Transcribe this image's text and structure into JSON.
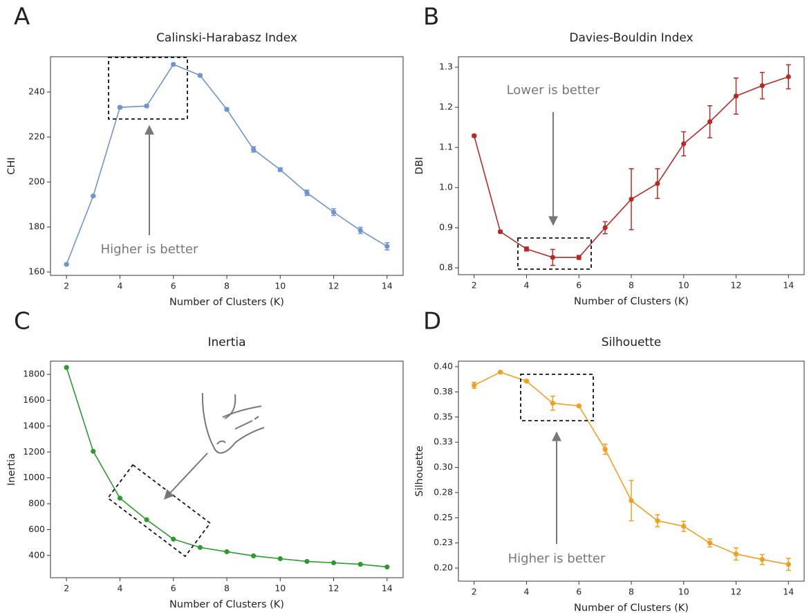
{
  "chart_data": [
    {
      "type": "line",
      "panel_label": "A",
      "title": "Calinski-Harabasz Index",
      "xlabel": "Number of Clusters (K)",
      "ylabel": "CHI",
      "annotation": "Higher is better",
      "color": "#6f94cf",
      "x": [
        2,
        3,
        4,
        5,
        6,
        7,
        8,
        9,
        10,
        11,
        12,
        13,
        14
      ],
      "values": [
        163.4,
        193.8,
        233.2,
        233.8,
        252.3,
        247.4,
        232.3,
        214.5,
        205.5,
        195.2,
        186.6,
        178.5,
        171.4
      ],
      "errors": [
        0.3,
        0.5,
        0.5,
        0.5,
        0.5,
        0.5,
        0.6,
        1.2,
        0.8,
        1.2,
        1.5,
        1.4,
        1.6
      ],
      "xlim": [
        1.4,
        14.6
      ],
      "xticks": [
        2,
        4,
        6,
        8,
        10,
        12,
        14
      ],
      "ylim": [
        158.5,
        255.7
      ],
      "yticks": [
        160,
        180,
        200,
        220,
        240
      ]
    },
    {
      "type": "line",
      "panel_label": "B",
      "title": "Davies-Bouldin Index",
      "xlabel": "Number of Clusters (K)",
      "ylabel": "DBI",
      "annotation": "Lower is better",
      "color": "#b52a25",
      "x": [
        2,
        3,
        4,
        5,
        6,
        7,
        8,
        9,
        10,
        11,
        12,
        13,
        14
      ],
      "values": [
        1.129,
        0.89,
        0.847,
        0.826,
        0.826,
        0.9,
        0.971,
        1.01,
        1.109,
        1.164,
        1.228,
        1.254,
        1.276
      ],
      "errors": [
        0.003,
        0.003,
        0.005,
        0.02,
        0.005,
        0.015,
        0.076,
        0.037,
        0.03,
        0.04,
        0.045,
        0.033,
        0.03
      ],
      "xlim": [
        1.4,
        14.6
      ],
      "xticks": [
        2,
        4,
        6,
        8,
        10,
        12,
        14
      ],
      "ylim": [
        0.783,
        1.326
      ],
      "yticks": [
        0.8,
        0.9,
        {
          "value": 1,
          "label": "1.0"
        },
        1.1,
        1.2,
        1.3
      ]
    },
    {
      "type": "line",
      "panel_label": "C",
      "title": "Inertia",
      "xlabel": "Number of Clusters (K)",
      "ylabel": "Inertia",
      "color": "#2e9a2e",
      "x": [
        2,
        3,
        4,
        5,
        6,
        7,
        8,
        9,
        10,
        11,
        12,
        13,
        14
      ],
      "values": [
        1853,
        1205,
        843,
        676,
        526,
        462,
        429,
        397,
        375,
        354,
        343,
        332,
        311
      ],
      "xlim": [
        1.4,
        14.6
      ],
      "xticks": [
        2,
        4,
        6,
        8,
        10,
        12,
        14
      ],
      "ylim": [
        228,
        1902
      ],
      "yticks": [
        400,
        600,
        800,
        1000,
        1200,
        1400,
        1600,
        1800
      ]
    },
    {
      "type": "line",
      "panel_label": "D",
      "title": "Silhouette",
      "xlabel": "Number of Clusters (K)",
      "ylabel": "Silhouette",
      "annotation": "Higher is better",
      "color": "#f0a020",
      "x": [
        2,
        3,
        4,
        5,
        6,
        7,
        8,
        9,
        10,
        11,
        12,
        13,
        14
      ],
      "values": [
        0.3816,
        0.3945,
        0.3857,
        0.3638,
        0.361,
        0.318,
        0.267,
        0.247,
        0.2415,
        0.225,
        0.214,
        0.2085,
        0.2037
      ],
      "errors": [
        0.003,
        0.001,
        0.001,
        0.007,
        0.001,
        0.005,
        0.02,
        0.006,
        0.005,
        0.004,
        0.006,
        0.005,
        0.006
      ],
      "xlim": [
        1.4,
        14.6
      ],
      "xticks": [
        2,
        4,
        6,
        8,
        10,
        12,
        14
      ],
      "ylim": [
        0.187,
        0.4055
      ],
      "yticks": [
        {
          "value": 0.2,
          "label": "0.20"
        },
        {
          "value": 0.225,
          "label": "0.23"
        },
        {
          "value": 0.25,
          "label": "0.25"
        },
        {
          "value": 0.275,
          "label": "0.28"
        },
        {
          "value": 0.3,
          "label": "0.30"
        },
        {
          "value": 0.325,
          "label": "0.33"
        },
        {
          "value": 0.35,
          "label": "0.35"
        },
        {
          "value": 0.375,
          "label": "0.38"
        },
        {
          "value": 0.4,
          "label": "0.40"
        }
      ]
    }
  ]
}
